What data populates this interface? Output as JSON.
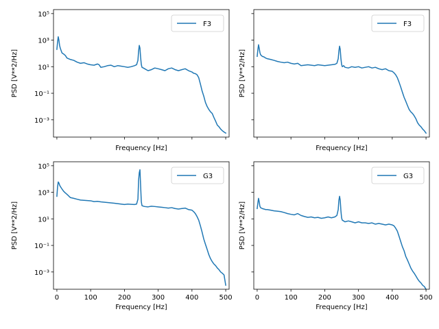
{
  "chart_data": [
    {
      "type": "line",
      "position": "top-left",
      "xlabel": "Frequency [Hz]",
      "ylabel": "PSD [V**2/Hz]",
      "xlim": [
        -10,
        510
      ],
      "ylim": [
        5e-05,
        200000
      ],
      "yscale": "log",
      "xticks": [
        0,
        100,
        200,
        300,
        400,
        500
      ],
      "xtick_labels_visible": false,
      "yticks": [
        0.001,
        0.1,
        10,
        1000,
        100000
      ],
      "ytick_labels": [
        "10⁻³",
        "10⁻¹",
        "10¹",
        "10³",
        "10⁵"
      ],
      "ytick_labels_visible": true,
      "legend": "upper right",
      "grid": false,
      "series": [
        {
          "name": "F3",
          "color": "#1f77b4",
          "x": [
            0,
            2,
            4,
            6,
            8,
            10,
            15,
            20,
            25,
            30,
            40,
            50,
            60,
            70,
            80,
            90,
            100,
            110,
            120,
            125,
            130,
            140,
            150,
            160,
            170,
            180,
            190,
            200,
            210,
            220,
            230,
            236,
            240,
            242,
            244,
            246,
            248,
            250,
            252,
            256,
            260,
            270,
            280,
            290,
            300,
            310,
            320,
            330,
            340,
            350,
            360,
            370,
            380,
            390,
            400,
            405,
            410,
            415,
            420,
            425,
            430,
            435,
            440,
            445,
            450,
            455,
            460,
            465,
            470,
            475,
            480,
            485,
            490,
            495,
            500
          ],
          "y": [
            200,
            700,
            1800,
            1000,
            400,
            250,
            110,
            90,
            70,
            45,
            35,
            30,
            22,
            18,
            20,
            16,
            14,
            13,
            16,
            14,
            9,
            10,
            12,
            13,
            10,
            12,
            11,
            10,
            9,
            10,
            12,
            14,
            30,
            150,
            400,
            250,
            50,
            15,
            9,
            8,
            7,
            5,
            6,
            8,
            7,
            6,
            5,
            7,
            8,
            6,
            5,
            6,
            7,
            5,
            4,
            3.2,
            3,
            2.5,
            1.5,
            0.5,
            0.15,
            0.06,
            0.02,
            0.01,
            0.006,
            0.004,
            0.003,
            0.0015,
            0.0008,
            0.0004,
            0.0003,
            0.0002,
            0.00015,
            0.00012,
            0.0001
          ]
        }
      ]
    },
    {
      "type": "line",
      "position": "top-right",
      "xlabel": "Frequency [Hz]",
      "ylabel": "PSD [V**2/Hz]",
      "xlim": [
        -10,
        510
      ],
      "ylim": [
        5e-05,
        200000
      ],
      "yscale": "log",
      "xticks": [
        0,
        100,
        200,
        300,
        400,
        500
      ],
      "xtick_labels_visible": false,
      "yticks": [
        0.001,
        0.1,
        10,
        1000,
        100000
      ],
      "ytick_labels_visible": false,
      "legend": "upper right",
      "grid": false,
      "series": [
        {
          "name": "F3",
          "color": "#1f77b4",
          "x": [
            0,
            2,
            4,
            6,
            8,
            10,
            15,
            20,
            25,
            30,
            40,
            50,
            60,
            70,
            80,
            90,
            100,
            110,
            120,
            130,
            140,
            150,
            160,
            170,
            180,
            190,
            200,
            210,
            220,
            230,
            236,
            240,
            242,
            244,
            246,
            248,
            250,
            252,
            256,
            260,
            270,
            280,
            290,
            300,
            310,
            320,
            330,
            340,
            350,
            360,
            370,
            380,
            390,
            400,
            405,
            410,
            415,
            420,
            425,
            430,
            435,
            440,
            445,
            450,
            455,
            460,
            465,
            470,
            475,
            480,
            485,
            490,
            495,
            500
          ],
          "y": [
            60,
            180,
            450,
            250,
            120,
            80,
            60,
            55,
            45,
            40,
            35,
            30,
            25,
            22,
            20,
            22,
            18,
            16,
            18,
            12,
            13,
            14,
            13,
            12,
            14,
            13,
            12,
            13,
            14,
            15,
            18,
            40,
            150,
            350,
            200,
            40,
            15,
            10,
            12,
            9,
            8,
            10,
            9,
            10,
            8,
            9,
            10,
            8,
            9,
            7,
            6,
            7,
            5,
            4.5,
            3.5,
            2.5,
            1.5,
            0.7,
            0.3,
            0.12,
            0.05,
            0.025,
            0.012,
            0.006,
            0.004,
            0.003,
            0.002,
            0.0012,
            0.0006,
            0.0004,
            0.0003,
            0.0002,
            0.00015,
            0.0001
          ]
        }
      ]
    },
    {
      "type": "line",
      "position": "bottom-left",
      "xlabel": "Frequency [Hz]",
      "ylabel": "PSD [V**2/Hz]",
      "xlim": [
        -10,
        510
      ],
      "ylim": [
        5e-05,
        200000
      ],
      "yscale": "log",
      "xticks": [
        0,
        100,
        200,
        300,
        400,
        500
      ],
      "xtick_labels": [
        "0",
        "100",
        "200",
        "300",
        "400",
        "500"
      ],
      "xtick_labels_visible": true,
      "yticks": [
        0.001,
        0.1,
        10,
        1000,
        100000
      ],
      "ytick_labels": [
        "10⁻³",
        "10⁻¹",
        "10¹",
        "10³",
        "10⁵"
      ],
      "ytick_labels_visible": true,
      "legend": "upper right",
      "grid": false,
      "series": [
        {
          "name": "G3",
          "color": "#1f77b4",
          "x": [
            0,
            2,
            4,
            6,
            8,
            10,
            15,
            20,
            25,
            30,
            40,
            50,
            60,
            70,
            80,
            90,
            100,
            110,
            120,
            130,
            140,
            150,
            160,
            170,
            180,
            190,
            200,
            210,
            220,
            230,
            236,
            240,
            242,
            244,
            246,
            248,
            250,
            252,
            256,
            260,
            270,
            280,
            290,
            300,
            310,
            320,
            330,
            340,
            350,
            360,
            370,
            380,
            390,
            400,
            405,
            410,
            415,
            420,
            425,
            430,
            435,
            440,
            445,
            450,
            455,
            460,
            465,
            470,
            475,
            480,
            485,
            490,
            495,
            500
          ],
          "y": [
            500,
            2500,
            6000,
            5000,
            3500,
            2800,
            1800,
            1200,
            900,
            700,
            400,
            350,
            300,
            260,
            250,
            240,
            230,
            200,
            210,
            190,
            180,
            170,
            160,
            150,
            140,
            130,
            120,
            130,
            125,
            120,
            130,
            300,
            8000,
            30000,
            50000,
            3000,
            200,
            100,
            90,
            85,
            80,
            90,
            85,
            80,
            75,
            70,
            65,
            70,
            60,
            55,
            60,
            65,
            50,
            45,
            35,
            25,
            15,
            8,
            3,
            1,
            0.3,
            0.12,
            0.05,
            0.02,
            0.01,
            0.006,
            0.004,
            0.003,
            0.002,
            0.0015,
            0.001,
            0.0008,
            0.0006,
            0.0001
          ]
        }
      ]
    },
    {
      "type": "line",
      "position": "bottom-right",
      "xlabel": "Frequency [Hz]",
      "ylabel": "PSD [V**2/Hz]",
      "xlim": [
        -10,
        510
      ],
      "ylim": [
        5e-05,
        200000
      ],
      "yscale": "log",
      "xticks": [
        0,
        100,
        200,
        300,
        400,
        500
      ],
      "xtick_labels": [
        "0",
        "100",
        "200",
        "300",
        "400",
        "500"
      ],
      "xtick_labels_visible": true,
      "yticks": [
        0.001,
        0.1,
        10,
        1000,
        100000
      ],
      "ytick_labels_visible": false,
      "legend": "upper right",
      "grid": false,
      "series": [
        {
          "name": "G3",
          "color": "#1f77b4",
          "x": [
            0,
            2,
            4,
            6,
            8,
            10,
            15,
            20,
            25,
            30,
            40,
            50,
            60,
            70,
            80,
            90,
            100,
            110,
            120,
            130,
            140,
            150,
            160,
            170,
            180,
            190,
            200,
            210,
            220,
            230,
            236,
            240,
            242,
            244,
            246,
            248,
            250,
            252,
            256,
            260,
            270,
            280,
            290,
            300,
            310,
            320,
            330,
            340,
            350,
            360,
            370,
            380,
            390,
            400,
            405,
            410,
            415,
            420,
            425,
            430,
            435,
            440,
            445,
            450,
            455,
            460,
            465,
            470,
            475,
            480,
            485,
            490,
            495,
            500
          ],
          "y": [
            60,
            150,
            350,
            200,
            90,
            70,
            60,
            55,
            50,
            50,
            45,
            40,
            38,
            35,
            30,
            25,
            22,
            20,
            25,
            18,
            15,
            13,
            14,
            12,
            13,
            11,
            12,
            14,
            12,
            14,
            18,
            50,
            250,
            500,
            250,
            40,
            12,
            8,
            7,
            6,
            7,
            6,
            5,
            6,
            5,
            5,
            4.5,
            5,
            4,
            4.5,
            4,
            3.5,
            4,
            3.5,
            3,
            2,
            1.2,
            0.5,
            0.2,
            0.08,
            0.04,
            0.015,
            0.008,
            0.004,
            0.002,
            0.0012,
            0.0008,
            0.0005,
            0.0003,
            0.0002,
            0.00015,
            0.0001,
            8e-05,
            5e-05
          ]
        }
      ]
    }
  ]
}
